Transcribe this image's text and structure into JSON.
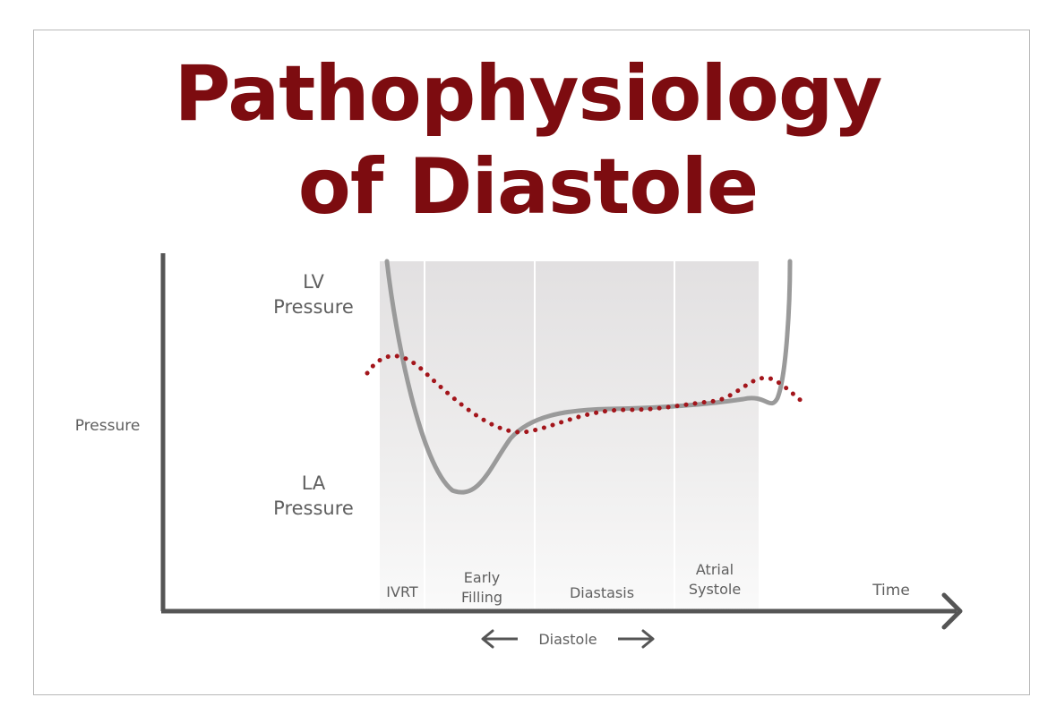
{
  "title": {
    "line1": "Pathophysiology",
    "line2": "of Diastole"
  },
  "axes": {
    "y_label": "Pressure",
    "x_label": "Time"
  },
  "curve_labels": {
    "lv_line1": "LV",
    "lv_line2": "Pressure",
    "la_line1": "LA",
    "la_line2": "Pressure"
  },
  "phases": {
    "ivrt": "IVRT",
    "early_filling_line1": "Early",
    "early_filling_line2": "Filling",
    "diastasis": "Diastasis",
    "atrial_systole_line1": "Atrial",
    "atrial_systole_line2": "Systole"
  },
  "diastole_label": "Diastole",
  "colors": {
    "title": "#7d0c10",
    "lv_curve": "#9a9a9a",
    "la_curve": "#a3151b",
    "axis": "#555555",
    "label": "#5f5f5f"
  }
}
